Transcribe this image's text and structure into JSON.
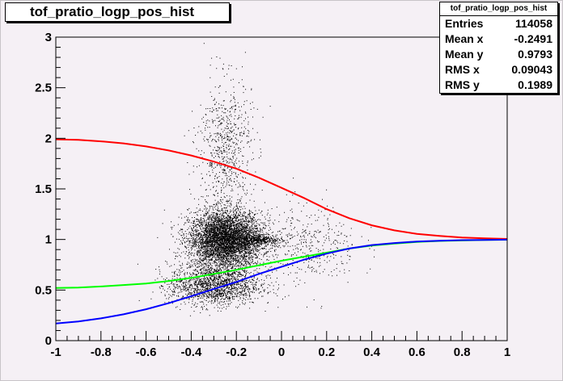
{
  "title": "tof_pratio_logp_pos_hist",
  "stats": {
    "header": "tof_pratio_logp_pos_hist",
    "rows": [
      {
        "label": "Entries",
        "value": "114058"
      },
      {
        "label": "Mean x",
        "value": "-0.2491"
      },
      {
        "label": "Mean y",
        "value": "0.9793"
      },
      {
        "label": "RMS x",
        "value": "0.09043"
      },
      {
        "label": "RMS y",
        "value": "0.1989"
      }
    ]
  },
  "chart_data": {
    "type": "scatter",
    "title": "tof_pratio_logp_pos_hist",
    "xlim": [
      -1,
      1
    ],
    "ylim": [
      0,
      3
    ],
    "x_ticks": [
      "-1",
      "-0.8",
      "-0.6",
      "-0.4",
      "-0.2",
      "0",
      "0.2",
      "0.4",
      "0.6",
      "0.8",
      "1"
    ],
    "y_ticks": [
      "0",
      "0.5",
      "1",
      "1.5",
      "2",
      "2.5",
      "3"
    ],
    "grid": false,
    "scatter_clusters": [
      {
        "center": [
          -0.25,
          1.0
        ],
        "spread": [
          0.08,
          0.14
        ],
        "weight": 0.55
      },
      {
        "center": [
          -0.1,
          1.0
        ],
        "spread": [
          0.05,
          0.02
        ],
        "weight": 0.04
      },
      {
        "center": [
          -0.25,
          1.9
        ],
        "spread": [
          0.06,
          0.35
        ],
        "weight": 0.08
      },
      {
        "center": [
          -0.3,
          0.55
        ],
        "spread": [
          0.1,
          0.1
        ],
        "weight": 0.18
      },
      {
        "center": [
          0.1,
          0.95
        ],
        "spread": [
          0.12,
          0.2
        ],
        "weight": 0.05
      }
    ],
    "curves": [
      {
        "color": "#ff0000",
        "points": [
          [
            -1,
            1.99
          ],
          [
            -0.9,
            1.985
          ],
          [
            -0.8,
            1.97
          ],
          [
            -0.7,
            1.95
          ],
          [
            -0.6,
            1.92
          ],
          [
            -0.5,
            1.88
          ],
          [
            -0.4,
            1.83
          ],
          [
            -0.3,
            1.77
          ],
          [
            -0.2,
            1.7
          ],
          [
            -0.1,
            1.61
          ],
          [
            0,
            1.51
          ],
          [
            0.1,
            1.41
          ],
          [
            0.2,
            1.3
          ],
          [
            0.3,
            1.21
          ],
          [
            0.4,
            1.14
          ],
          [
            0.5,
            1.09
          ],
          [
            0.6,
            1.055
          ],
          [
            0.7,
            1.035
          ],
          [
            0.8,
            1.02
          ],
          [
            0.9,
            1.012
          ],
          [
            1,
            1.005
          ]
        ]
      },
      {
        "color": "#00ff00",
        "points": [
          [
            -1,
            0.52
          ],
          [
            -0.9,
            0.525
          ],
          [
            -0.8,
            0.535
          ],
          [
            -0.7,
            0.55
          ],
          [
            -0.6,
            0.565
          ],
          [
            -0.5,
            0.59
          ],
          [
            -0.4,
            0.62
          ],
          [
            -0.3,
            0.66
          ],
          [
            -0.2,
            0.7
          ],
          [
            -0.1,
            0.745
          ],
          [
            0,
            0.79
          ],
          [
            0.1,
            0.83
          ],
          [
            0.2,
            0.87
          ],
          [
            0.3,
            0.91
          ],
          [
            0.4,
            0.94
          ],
          [
            0.5,
            0.96
          ],
          [
            0.6,
            0.975
          ],
          [
            0.7,
            0.985
          ],
          [
            0.8,
            0.99
          ],
          [
            0.9,
            0.995
          ],
          [
            1,
            0.997
          ]
        ]
      },
      {
        "color": "#0000ff",
        "points": [
          [
            -1,
            0.17
          ],
          [
            -0.9,
            0.19
          ],
          [
            -0.8,
            0.22
          ],
          [
            -0.7,
            0.26
          ],
          [
            -0.6,
            0.31
          ],
          [
            -0.5,
            0.37
          ],
          [
            -0.4,
            0.44
          ],
          [
            -0.3,
            0.51
          ],
          [
            -0.2,
            0.58
          ],
          [
            -0.1,
            0.66
          ],
          [
            0,
            0.73
          ],
          [
            0.1,
            0.8
          ],
          [
            0.2,
            0.86
          ],
          [
            0.3,
            0.91
          ],
          [
            0.4,
            0.945
          ],
          [
            0.5,
            0.965
          ],
          [
            0.6,
            0.98
          ],
          [
            0.7,
            0.988
          ],
          [
            0.8,
            0.993
          ],
          [
            0.9,
            0.996
          ],
          [
            1,
            0.998
          ]
        ]
      }
    ]
  }
}
